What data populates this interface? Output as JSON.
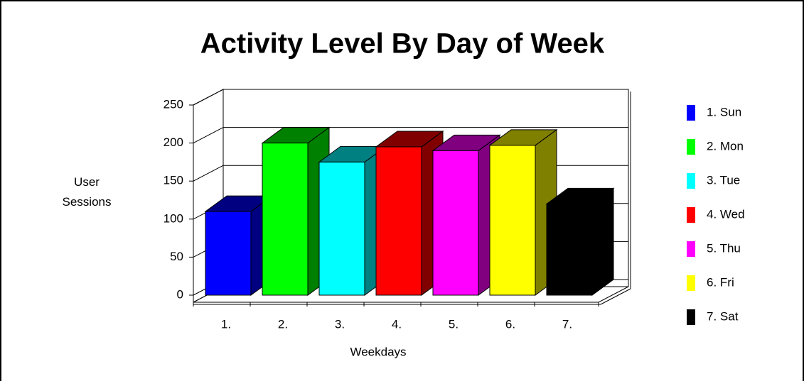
{
  "chart_data": {
    "type": "bar3d",
    "title": "Activity Level By Day of Week",
    "ylabel": "User Sessions",
    "xlabel": "Weekdays",
    "categories": [
      "1.",
      "2.",
      "3.",
      "4.",
      "5.",
      "6.",
      "7."
    ],
    "values": [
      110,
      200,
      175,
      195,
      190,
      197,
      120
    ],
    "colors": [
      "#0000ff",
      "#00ff00",
      "#00ffff",
      "#ff0000",
      "#ff00ff",
      "#ffff00",
      "#000000"
    ],
    "legend": [
      "1. Sun",
      "2. Mon",
      "3. Tue",
      "4. Wed",
      "5. Thu",
      "6. Fri",
      "7. Sat"
    ],
    "ylim": [
      0,
      250
    ],
    "yticks": [
      0,
      50,
      100,
      150,
      200,
      250
    ],
    "grid": true
  }
}
